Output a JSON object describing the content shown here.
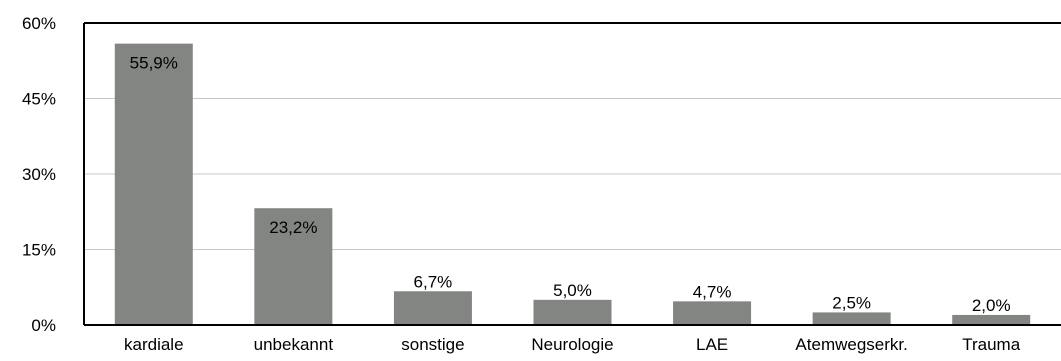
{
  "chart_data": {
    "type": "bar",
    "categories": [
      "kardiale",
      "unbekannt",
      "sonstige",
      "Neurologie",
      "LAE",
      "Atemwegserkr.",
      "Trauma"
    ],
    "values": [
      55.9,
      23.2,
      6.7,
      5.0,
      4.7,
      2.5,
      2.0
    ],
    "data_labels": [
      "55,9%",
      "23,2%",
      "6,7%",
      "5,0%",
      "4,7%",
      "2,5%",
      "2,0%"
    ],
    "ylim": [
      0,
      60
    ],
    "yticks": [
      0,
      15,
      30,
      45,
      60
    ],
    "ytick_labels": [
      "0%",
      "15%",
      "30%",
      "45%",
      "60%"
    ],
    "grid": true,
    "bar_color": "#828582",
    "grid_color": "#c8c8c8",
    "title": "",
    "xlabel": "",
    "ylabel": ""
  }
}
